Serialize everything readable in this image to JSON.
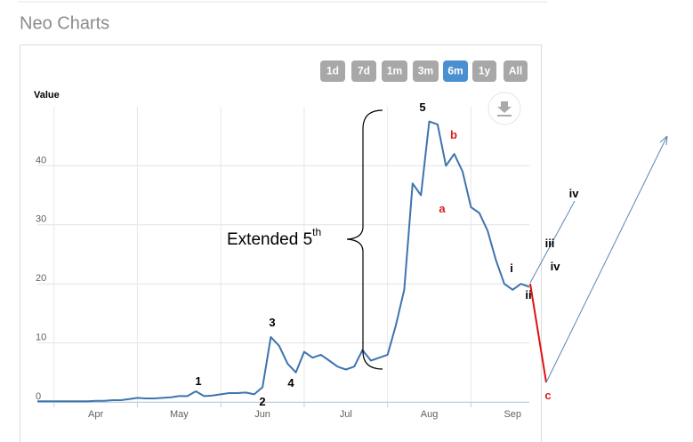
{
  "page_title": "Neo Charts",
  "range_buttons": {
    "items": [
      "1d",
      "7d",
      "1m",
      "3m",
      "6m",
      "1y",
      "All"
    ],
    "active": 4
  },
  "chart_data": {
    "type": "line",
    "ylabel": "Value",
    "categories": [
      null,
      null,
      null,
      null,
      null,
      null,
      null,
      "Apr",
      null,
      null,
      null,
      null,
      null,
      null,
      null,
      null,
      null,
      "May",
      null,
      null,
      null,
      null,
      null,
      null,
      null,
      null,
      null,
      "Jun",
      null,
      null,
      null,
      null,
      null,
      null,
      null,
      null,
      null,
      "Jul",
      null,
      null,
      null,
      null,
      null,
      null,
      null,
      null,
      null,
      "Aug",
      null,
      null,
      null,
      null,
      null,
      null,
      null,
      null,
      null,
      "Sep",
      null,
      null
    ],
    "series": [
      {
        "name": "Value",
        "color": "#3d74ae",
        "values": [
          0.1,
          0.1,
          0.1,
          0.1,
          0.1,
          0.1,
          0.1,
          0.2,
          0.2,
          0.3,
          0.3,
          0.5,
          0.7,
          0.6,
          0.6,
          0.7,
          0.8,
          1.0,
          1.0,
          1.8,
          1.0,
          1.1,
          1.3,
          1.5,
          1.5,
          1.6,
          1.3,
          2.5,
          11,
          9.5,
          6.5,
          5.0,
          8.5,
          7.5,
          8.0,
          7.0,
          6.0,
          5.5,
          6.0,
          8.8,
          7.0,
          7.5,
          8.0,
          13,
          19,
          37,
          35,
          47.5,
          47,
          40,
          42,
          39,
          33,
          32,
          29,
          24,
          20,
          19,
          20,
          19.5
        ]
      }
    ],
    "ylim": [
      0,
      50
    ],
    "yticks": [
      0,
      10,
      20,
      30,
      40
    ],
    "grid": true,
    "annotations": [
      {
        "text": "1",
        "color": "#000000"
      },
      {
        "text": "2",
        "color": "#000000"
      },
      {
        "text": "3",
        "color": "#000000"
      },
      {
        "text": "4",
        "color": "#000000"
      },
      {
        "text": "5",
        "color": "#000000"
      },
      {
        "text": "a",
        "color": "#d42020"
      },
      {
        "text": "b",
        "color": "#d42020"
      },
      {
        "text": "c",
        "color": "#d42020"
      },
      {
        "text": "i",
        "color": "#000000"
      },
      {
        "text": "ii",
        "color": "#000000"
      },
      {
        "text": "iii",
        "color": "#000000"
      },
      {
        "text": "iv",
        "color": "#000000"
      },
      {
        "text": "iv",
        "color": "#000000"
      },
      {
        "text": "Extended 5",
        "sup": "th",
        "color": "#000000"
      }
    ]
  }
}
